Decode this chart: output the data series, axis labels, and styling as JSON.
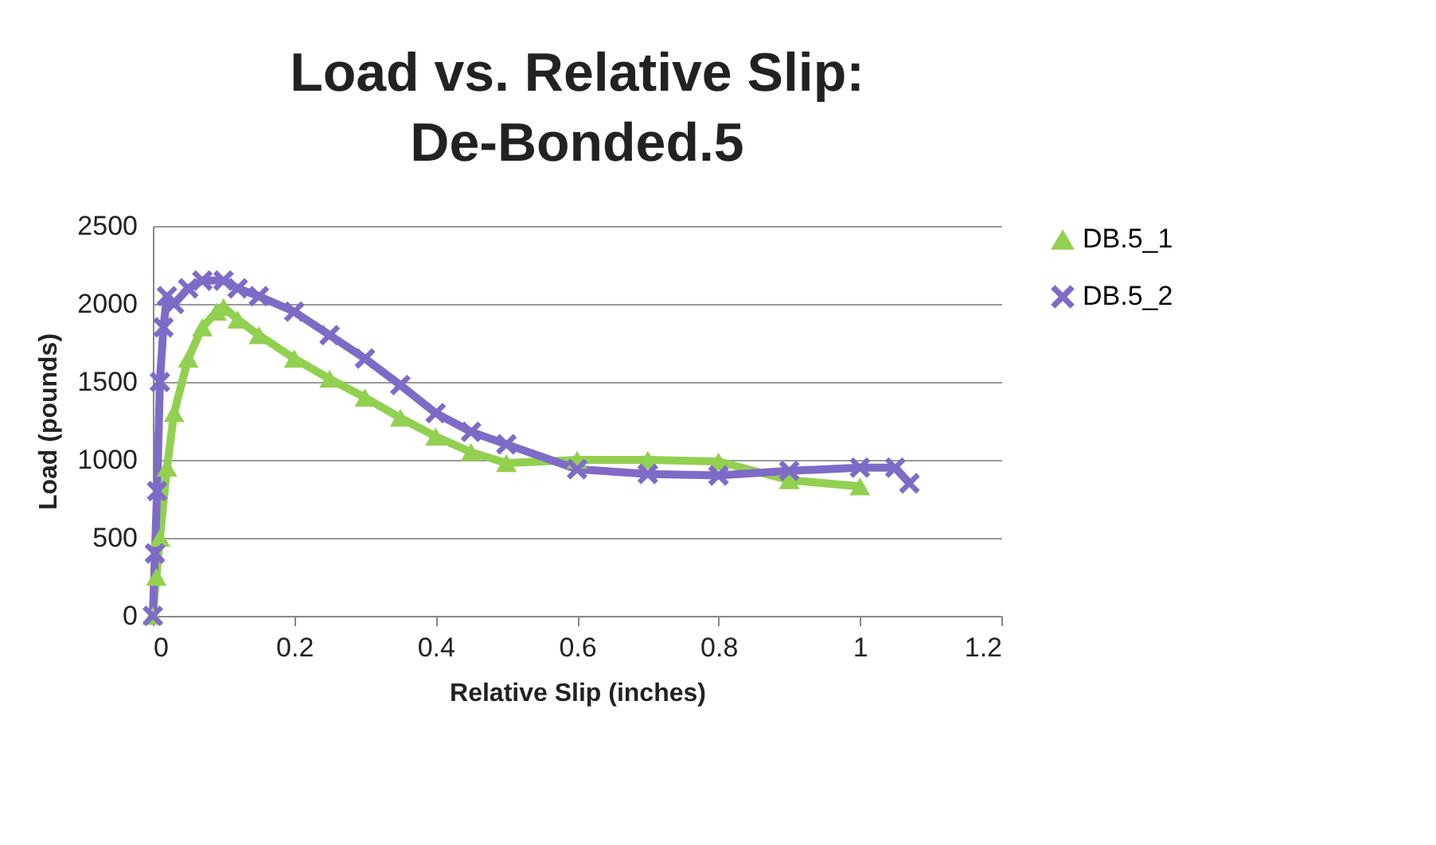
{
  "chart_data": {
    "type": "line",
    "title": "Load vs. Relative Slip:\nDe-Bonded.5",
    "xlabel": "Relative Slip (inches)",
    "ylabel": "Load (pounds)",
    "xlim": [
      0,
      1.2
    ],
    "xticks": [
      0,
      0.2,
      0.4,
      0.6,
      0.8,
      1,
      1.2
    ],
    "ylim": [
      0,
      2500
    ],
    "yticks": [
      0,
      500,
      1000,
      1500,
      2000,
      2500
    ],
    "grid": "y",
    "legend": "right",
    "line_style": "solid",
    "series": [
      {
        "name": "DB.5_1",
        "color": "#92d050",
        "marker": "triangle",
        "x": [
          0,
          0.005,
          0.01,
          0.02,
          0.03,
          0.05,
          0.07,
          0.09,
          0.1,
          0.12,
          0.15,
          0.2,
          0.25,
          0.3,
          0.35,
          0.4,
          0.45,
          0.5,
          0.6,
          0.7,
          0.8,
          0.9,
          1.0
        ],
        "values": [
          0,
          250,
          500,
          950,
          1300,
          1650,
          1850,
          1950,
          1980,
          1900,
          1800,
          1650,
          1520,
          1400,
          1270,
          1150,
          1050,
          980,
          1000,
          1000,
          990,
          870,
          830
        ]
      },
      {
        "name": "DB.5_2",
        "color": "#7f6bc7",
        "marker": "cross",
        "x": [
          0,
          0.003,
          0.006,
          0.01,
          0.015,
          0.02,
          0.03,
          0.05,
          0.07,
          0.1,
          0.12,
          0.15,
          0.2,
          0.25,
          0.3,
          0.35,
          0.4,
          0.45,
          0.5,
          0.6,
          0.7,
          0.8,
          0.9,
          1.0,
          1.05,
          1.07
        ],
        "values": [
          0,
          400,
          800,
          1500,
          1850,
          2050,
          2000,
          2100,
          2150,
          2150,
          2100,
          2050,
          1950,
          1800,
          1650,
          1480,
          1300,
          1180,
          1100,
          940,
          910,
          900,
          930,
          950,
          950,
          850
        ]
      }
    ]
  }
}
